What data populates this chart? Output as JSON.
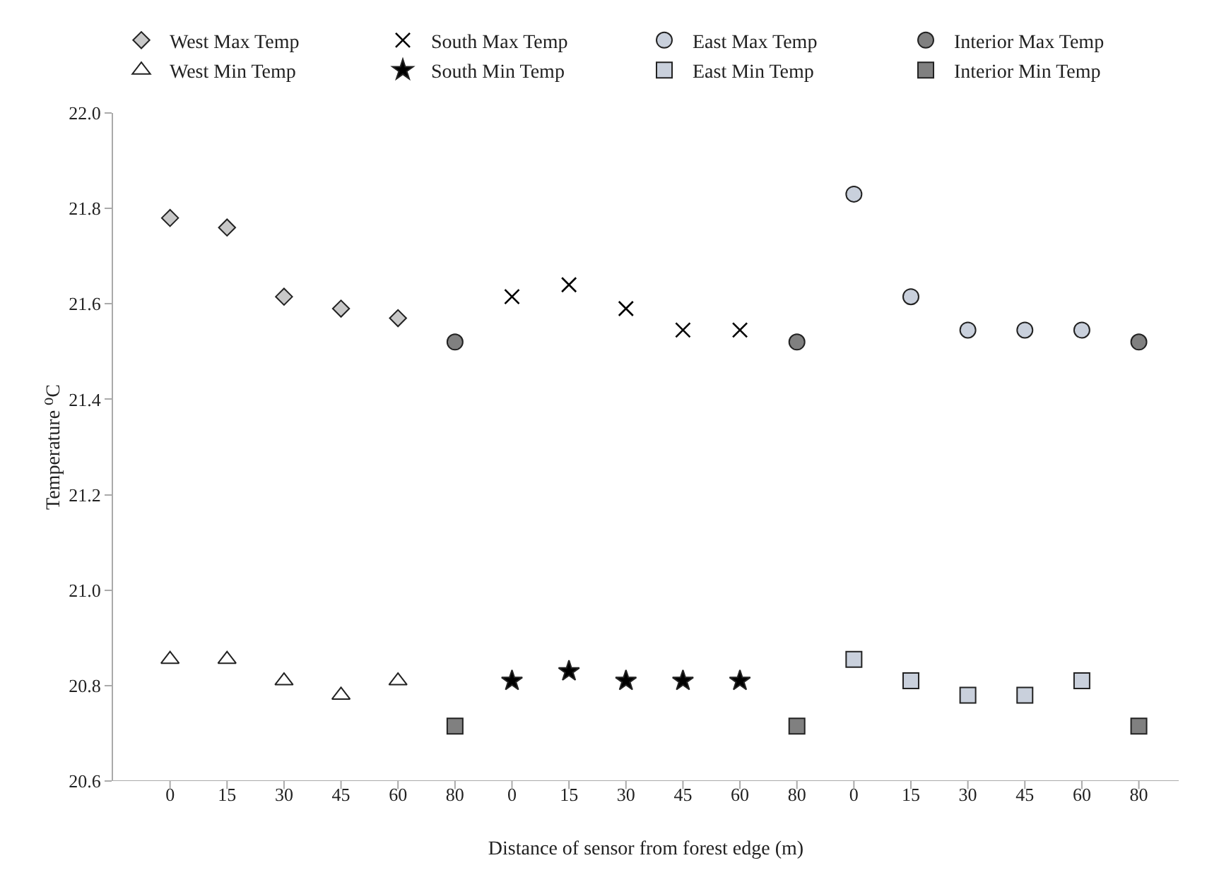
{
  "chart_data": {
    "type": "scatter",
    "xlabel": "Distance of sensor from forest edge (m)",
    "ylabel": "Temperature ⁰C",
    "categories": [
      "0",
      "15",
      "30",
      "45",
      "60",
      "80",
      "0",
      "15",
      "30",
      "45",
      "60",
      "80",
      "0",
      "15",
      "30",
      "45",
      "60",
      "80"
    ],
    "ylim": [
      20.6,
      22.0
    ],
    "yticks": [
      {
        "value": 20.6,
        "label": "20.6"
      },
      {
        "value": 20.8,
        "label": "20.8"
      },
      {
        "value": 21.0,
        "label": "21.0"
      },
      {
        "value": 21.2,
        "label": "21.2"
      },
      {
        "value": 21.4,
        "label": "21.4"
      },
      {
        "value": 21.6,
        "label": "21.6"
      },
      {
        "value": 21.8,
        "label": "21.8"
      },
      {
        "value": 22.0,
        "label": "22.0"
      }
    ],
    "grid": false,
    "legend": "top",
    "series": [
      {
        "name": "West Max Temp",
        "color": "#c8c8c8",
        "marker": "diamond",
        "values": [
          21.78,
          21.76,
          21.615,
          21.59,
          21.57,
          null,
          null,
          null,
          null,
          null,
          null,
          null,
          null,
          null,
          null,
          null,
          null,
          null
        ]
      },
      {
        "name": "South Max Temp",
        "color": "#000000",
        "marker": "cross",
        "values": [
          null,
          null,
          null,
          null,
          null,
          null,
          21.615,
          21.64,
          21.59,
          21.545,
          21.545,
          null,
          null,
          null,
          null,
          null,
          null,
          null
        ]
      },
      {
        "name": "East Max Temp",
        "color": "#c9d0dc",
        "marker": "circle",
        "values": [
          null,
          null,
          null,
          null,
          null,
          null,
          null,
          null,
          null,
          null,
          null,
          null,
          21.83,
          21.615,
          21.545,
          21.545,
          21.545,
          null
        ]
      },
      {
        "name": "Interior Max Temp",
        "color": "#808080",
        "marker": "circle",
        "values": [
          null,
          null,
          null,
          null,
          null,
          21.52,
          null,
          null,
          null,
          null,
          null,
          21.52,
          null,
          null,
          null,
          null,
          null,
          21.52
        ]
      },
      {
        "name": "West Min Temp",
        "color": "#ffffff",
        "marker": "triangle",
        "values": [
          20.855,
          20.855,
          20.81,
          20.78,
          20.81,
          null,
          null,
          null,
          null,
          null,
          null,
          null,
          null,
          null,
          null,
          null,
          null,
          null
        ]
      },
      {
        "name": "South Min Temp",
        "color": "#000000",
        "marker": "star",
        "values": [
          null,
          null,
          null,
          null,
          null,
          null,
          20.81,
          20.83,
          20.81,
          20.81,
          20.81,
          null,
          null,
          null,
          null,
          null,
          null,
          null
        ]
      },
      {
        "name": "East Min Temp",
        "color": "#c9d0dc",
        "marker": "square",
        "values": [
          null,
          null,
          null,
          null,
          null,
          null,
          null,
          null,
          null,
          null,
          null,
          null,
          20.855,
          20.81,
          20.78,
          20.78,
          20.81,
          null
        ]
      },
      {
        "name": "Interior Min Temp",
        "color": "#808080",
        "marker": "square",
        "values": [
          null,
          null,
          null,
          null,
          null,
          20.715,
          null,
          null,
          null,
          null,
          null,
          20.715,
          null,
          null,
          null,
          null,
          null,
          20.715
        ]
      }
    ]
  }
}
